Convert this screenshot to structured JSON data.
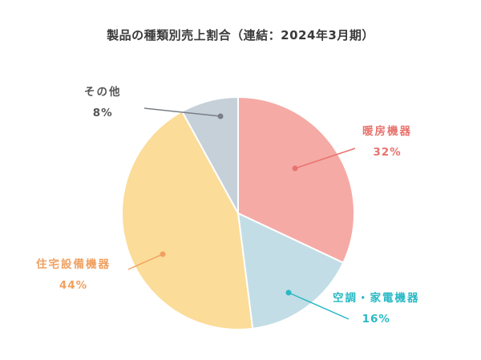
{
  "chart_data": {
    "type": "pie",
    "title": "製品の種類別売上割合（連結：2024年3月期）",
    "categories": [
      "暖房機器",
      "空調・家電機器",
      "住宅設備機器",
      "その他"
    ],
    "values": [
      32,
      16,
      44,
      8
    ],
    "unit": "%",
    "colors": [
      "#f5aaa6",
      "#c2dde5",
      "#fbdc98",
      "#c5d0d9"
    ],
    "label_colors": [
      "#e8736e",
      "#28b9c4",
      "#f0a060",
      "#555555"
    ],
    "start_angle": "12 o'clock",
    "direction": "clockwise",
    "legend": "none (callout labels)"
  },
  "labels": {
    "heating": {
      "name": "暖房機器",
      "pct": "32%"
    },
    "aircon": {
      "name": "空調・家電機器",
      "pct": "16%"
    },
    "housing": {
      "name": "住宅設備機器",
      "pct": "44%"
    },
    "other": {
      "name": "その他",
      "pct": "8%"
    }
  }
}
